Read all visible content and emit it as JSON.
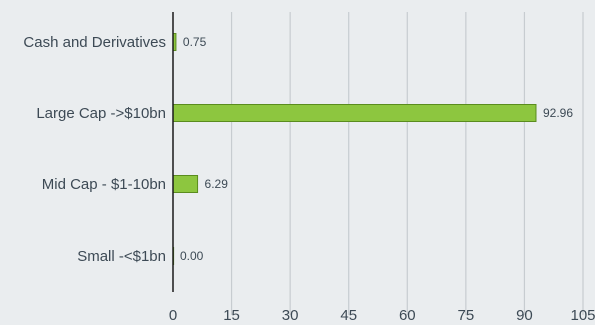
{
  "chart_data": {
    "type": "bar",
    "orientation": "horizontal",
    "categories": [
      "Cash and Derivatives",
      "Large Cap ->$10bn",
      "Mid Cap - $1-10bn",
      "Small -<$1bn"
    ],
    "values": [
      0.75,
      92.96,
      6.29,
      0.0
    ],
    "value_labels": [
      "0.75",
      "92.96",
      "6.29",
      "0.00"
    ],
    "xlim": [
      0,
      105
    ],
    "x_ticks": [
      0,
      15,
      30,
      45,
      60,
      75,
      90,
      105
    ],
    "x_tick_labels": [
      "0",
      "15",
      "30",
      "45",
      "60",
      "75",
      "90",
      "105"
    ],
    "grid": "vertical",
    "legend": "none",
    "colors": {
      "bar_fill": "#8dc63f",
      "bar_stroke": "#5a8c1e",
      "grid": "#c7ccd0",
      "axis": "#1a1a1a",
      "background": "#eaedef",
      "text": "#3d4a55"
    }
  }
}
